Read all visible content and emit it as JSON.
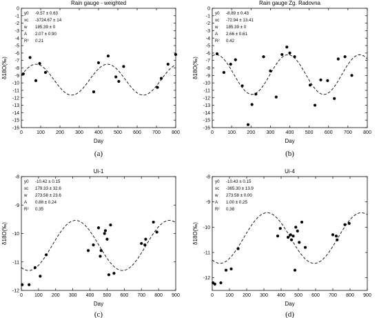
{
  "chart_data": [
    {
      "panel": "(a)",
      "type": "scatter",
      "title": "Rain gauge - weighted",
      "xlabel": "Day",
      "ylabel": "δ18O(‰)",
      "xlim": [
        0,
        800
      ],
      "ylim": [
        -16,
        0
      ],
      "xticks": [
        0,
        100,
        200,
        300,
        400,
        500,
        600,
        700,
        800
      ],
      "yticks": [
        0,
        -1,
        -2,
        -3,
        -4,
        -5,
        -6,
        -7,
        -8,
        -9,
        -10,
        -11,
        -12,
        -13,
        -14,
        -15,
        -16
      ],
      "grid": false,
      "annotation": [
        {
          "k": "y0",
          "v": "-9.57 ± 0.63"
        },
        {
          "k": "xc",
          "v": "-3724.67 ± 14"
        },
        {
          "k": "w",
          "v": "185.39 ± 0"
        },
        {
          "k": "A",
          "v": "2.07 ± 0.90"
        },
        {
          "k": "R²",
          "v": "0.21"
        }
      ],
      "fit": {
        "y0": -9.57,
        "xc": -3724.67,
        "w": 185.39,
        "A": 2.07
      },
      "points": [
        [
          10,
          -8.8
        ],
        [
          45,
          -6.6
        ],
        [
          75,
          -9.7
        ],
        [
          95,
          -7.4
        ],
        [
          125,
          -8.6
        ],
        [
          375,
          -11.2
        ],
        [
          400,
          -7.3
        ],
        [
          450,
          -6.4
        ],
        [
          490,
          -9.2
        ],
        [
          505,
          -9.8
        ],
        [
          530,
          -7.8
        ],
        [
          705,
          -10.6
        ],
        [
          725,
          -9.4
        ],
        [
          760,
          -7.5
        ],
        [
          800,
          -6.2
        ]
      ]
    },
    {
      "panel": "(b)",
      "type": "scatter",
      "title": "Rain gauge Zg. Radovna",
      "xlabel": "Day",
      "ylabel": "δ18O(‰)",
      "xlim": [
        0,
        800
      ],
      "ylim": [
        -16,
        0
      ],
      "xticks": [
        0,
        100,
        200,
        300,
        400,
        500,
        600,
        700,
        800
      ],
      "yticks": [
        0,
        -1,
        -2,
        -3,
        -4,
        -5,
        -6,
        -7,
        -8,
        -9,
        -10,
        -11,
        -12,
        -13,
        -14,
        -15,
        -16
      ],
      "grid": false,
      "annotation": [
        {
          "k": "y0",
          "v": "-8.89 ± 0.43"
        },
        {
          "k": "xc",
          "v": "-72.94 ± 13.41"
        },
        {
          "k": "w",
          "v": "185.39 ± 0"
        },
        {
          "k": "A",
          "v": "2.66 ± 0.61"
        },
        {
          "k": "R²",
          "v": "0.42"
        }
      ],
      "fit": {
        "y0": -8.89,
        "xc": -72.94,
        "w": 185.39,
        "A": 2.66
      },
      "points": [
        [
          25,
          -6.1
        ],
        [
          60,
          -8.6
        ],
        [
          95,
          -7.5
        ],
        [
          120,
          -6.9
        ],
        [
          155,
          -10.4
        ],
        [
          185,
          -15.6
        ],
        [
          205,
          -12.9
        ],
        [
          225,
          -11.5
        ],
        [
          265,
          -6.5
        ],
        [
          300,
          -8.4
        ],
        [
          330,
          -11.9
        ],
        [
          360,
          -6.2
        ],
        [
          385,
          -5.2
        ],
        [
          400,
          -6.0
        ],
        [
          425,
          -6.5
        ],
        [
          505,
          -10.3
        ],
        [
          530,
          -13.0
        ],
        [
          560,
          -9.6
        ],
        [
          595,
          -9.7
        ],
        [
          630,
          -12.1
        ],
        [
          650,
          -6.8
        ],
        [
          685,
          -6.5
        ],
        [
          720,
          -9.0
        ]
      ]
    },
    {
      "panel": "(c)",
      "type": "scatter",
      "title": "Ui-1",
      "xlabel": "Day",
      "ylabel": "δ18O(‰)",
      "xlim": [
        0,
        900
      ],
      "ylim": [
        -12,
        -8
      ],
      "xticks": [
        0,
        100,
        200,
        300,
        400,
        500,
        600,
        700,
        800,
        900
      ],
      "yticks": [
        -8,
        -9,
        -10,
        -11,
        -12
      ],
      "grid": false,
      "annotation": [
        {
          "k": "y0",
          "v": "-10.42 ± 0.15"
        },
        {
          "k": "xc",
          "v": "179.33 ± 32.6"
        },
        {
          "k": "w",
          "v": "273.58 ± 23.6"
        },
        {
          "k": "A",
          "v": "0.88 ± 0.24"
        },
        {
          "k": "R²",
          "v": "0.35"
        }
      ],
      "fit": {
        "y0": -10.42,
        "xc": 179.33,
        "w": 273.58,
        "A": 0.88
      },
      "points": [
        [
          5,
          -11.8
        ],
        [
          45,
          -11.8
        ],
        [
          80,
          -11.2
        ],
        [
          110,
          -11.5
        ],
        [
          145,
          -10.75
        ],
        [
          390,
          -10.6
        ],
        [
          420,
          -10.4
        ],
        [
          450,
          -9.8
        ],
        [
          460,
          -10.8
        ],
        [
          465,
          -10.6
        ],
        [
          485,
          -10.0
        ],
        [
          490,
          -9.9
        ],
        [
          500,
          -10.2
        ],
        [
          510,
          -11.45
        ],
        [
          520,
          -9.7
        ],
        [
          540,
          -11.4
        ],
        [
          700,
          -10.35
        ],
        [
          720,
          -10.4
        ],
        [
          725,
          -10.2
        ],
        [
          770,
          -9.6
        ],
        [
          790,
          -9.95
        ]
      ]
    },
    {
      "panel": "(d)",
      "type": "scatter",
      "title": "Ui-4",
      "xlabel": "Day",
      "ylabel": "δ18O(‰)",
      "xlim": [
        0,
        900
      ],
      "ylim": [
        -12.5,
        -8
      ],
      "xticks": [
        0,
        100,
        200,
        300,
        400,
        500,
        600,
        700,
        800,
        900
      ],
      "yticks": [
        -8,
        -9,
        -10,
        -11,
        -12
      ],
      "grid": false,
      "annotation": [
        {
          "k": "y0",
          "v": "-10.43 ± 0.15"
        },
        {
          "k": "xc",
          "v": "-365.30 ± 13.9"
        },
        {
          "k": "w",
          "v": "273.58 ± 0.00"
        },
        {
          "k": "A",
          "v": "1.00 ± 0.25"
        },
        {
          "k": "R²",
          "v": "0.38"
        }
      ],
      "fit": {
        "y0": -10.43,
        "xc": -365.3,
        "w": 273.58,
        "A": 1.0
      },
      "points": [
        [
          5,
          -12.2
        ],
        [
          15,
          -12.25
        ],
        [
          50,
          -12.2
        ],
        [
          80,
          -11.7
        ],
        [
          110,
          -11.65
        ],
        [
          150,
          -10.85
        ],
        [
          380,
          -10.35
        ],
        [
          395,
          -10.05
        ],
        [
          440,
          -10.4
        ],
        [
          455,
          -10.3
        ],
        [
          460,
          -10.5
        ],
        [
          470,
          -10.35
        ],
        [
          480,
          -11.7
        ],
        [
          485,
          -10.0
        ],
        [
          495,
          -10.15
        ],
        [
          505,
          -10.6
        ],
        [
          520,
          -9.8
        ],
        [
          540,
          -10.8
        ],
        [
          700,
          -10.3
        ],
        [
          720,
          -10.35
        ],
        [
          725,
          -10.5
        ],
        [
          770,
          -9.9
        ],
        [
          795,
          -9.85
        ]
      ]
    }
  ]
}
